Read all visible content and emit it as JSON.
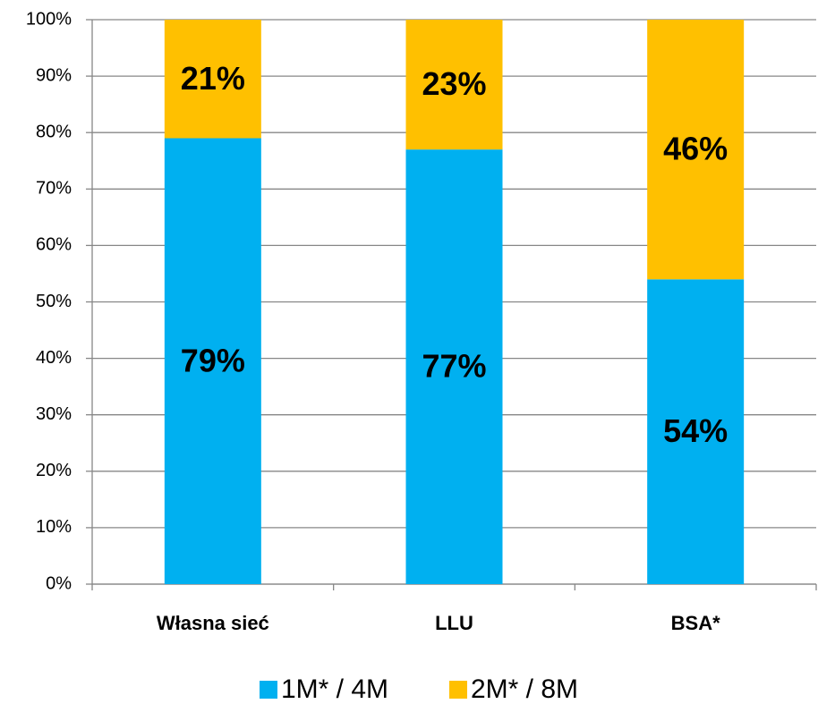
{
  "chart_data": {
    "type": "stacked_bar",
    "categories": [
      "Własna sieć",
      "LLU",
      "BSA*"
    ],
    "series": [
      {
        "name": "1M* / 4M",
        "color": "#00b0f0",
        "values": [
          79,
          77,
          54
        ],
        "value_labels": [
          "79%",
          "77%",
          "54%"
        ]
      },
      {
        "name": "2M* / 8M",
        "color": "#ffc000",
        "values": [
          21,
          23,
          46
        ],
        "value_labels": [
          "21%",
          "23%",
          "46%"
        ]
      }
    ],
    "ylim": [
      0,
      100
    ],
    "yticks": [
      {
        "value": 0,
        "label": "0%"
      },
      {
        "value": 10,
        "label": "10%"
      },
      {
        "value": 20,
        "label": "20%"
      },
      {
        "value": 30,
        "label": "30%"
      },
      {
        "value": 40,
        "label": "40%"
      },
      {
        "value": 50,
        "label": "50%"
      },
      {
        "value": 60,
        "label": "60%"
      },
      {
        "value": 70,
        "label": "70%"
      },
      {
        "value": 80,
        "label": "80%"
      },
      {
        "value": 90,
        "label": "90%"
      },
      {
        "value": 100,
        "label": "100%"
      }
    ],
    "grid": true,
    "legend": "bottom"
  }
}
